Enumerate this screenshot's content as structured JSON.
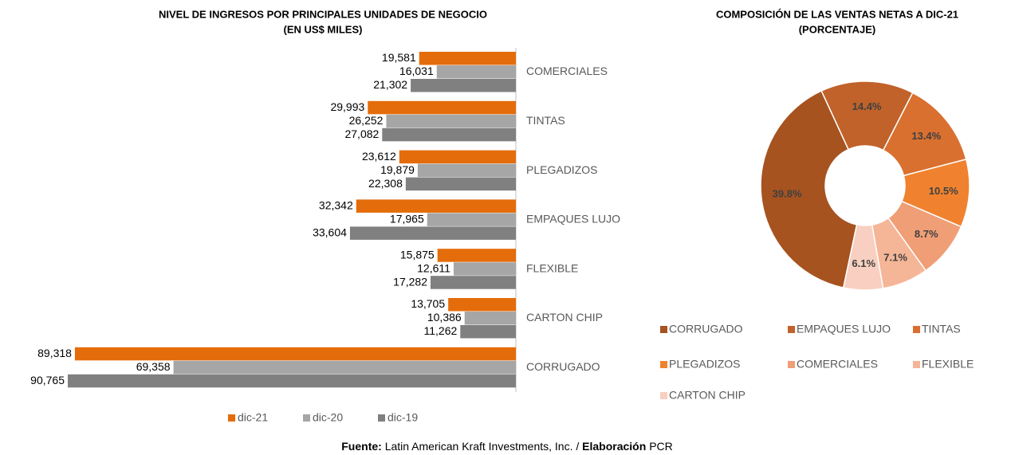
{
  "chart_data": [
    {
      "type": "hbar",
      "title": [
        "NIVEL DE INGRESOS POR PRINCIPALES UNIDADES DE NEGOCIO",
        "(EN US$ MILES)"
      ],
      "categories": [
        "COMERCIALES",
        "TINTAS",
        "PLEGADIZOS",
        "EMPAQUES LUJO",
        "FLEXIBLE",
        "CARTON CHIP",
        "CORRUGADO"
      ],
      "series": [
        {
          "name": "dic-21",
          "color": "#e46c0a",
          "values": [
            19581,
            29993,
            23612,
            32342,
            15875,
            13705,
            89318
          ],
          "value_labels": [
            "19,581",
            "29,993",
            "23,612",
            "32,342",
            "15,875",
            "13,705",
            "89,318"
          ]
        },
        {
          "name": "dic-20",
          "color": "#a6a6a6",
          "values": [
            16031,
            26252,
            19879,
            17965,
            12611,
            10386,
            69358
          ],
          "value_labels": [
            "16,031",
            "26,252",
            "19,879",
            "17,965",
            "12,611",
            "10,386",
            "69,358"
          ]
        },
        {
          "name": "dic-19",
          "color": "#808080",
          "values": [
            21302,
            27082,
            22308,
            33604,
            17282,
            11262,
            90765
          ],
          "value_labels": [
            "21,302",
            "27,082",
            "22,308",
            "33,604",
            "17,282",
            "11,262",
            "90,765"
          ]
        }
      ],
      "legend": "bottom"
    },
    {
      "type": "donut",
      "title": [
        "COMPOSICIÓN DE LAS VENTAS NETAS A DIC-21",
        "(PORCENTAJE)"
      ],
      "categories": [
        "CORRUGADO",
        "EMPAQUES LUJO",
        "TINTAS",
        "PLEGADIZOS",
        "COMERCIALES",
        "FLEXIBLE",
        "CARTON CHIP"
      ],
      "values": [
        39.8,
        14.4,
        13.4,
        10.5,
        8.7,
        7.1,
        6.1
      ],
      "value_labels": [
        "39.8%",
        "14.4%",
        "13.4%",
        "10.5%",
        "8.7%",
        "7.1%",
        "6.1%"
      ],
      "colors": [
        "#a65320",
        "#c0622a",
        "#d9702f",
        "#f0822f",
        "#f09e76",
        "#f5b597",
        "#f8cfc0"
      ],
      "legend": "bottom"
    }
  ],
  "footer": {
    "source_label": "Fuente:",
    "source": "Latin American Kraft Investments, Inc. / ",
    "author_label": "Elaboración",
    "author": "PCR"
  }
}
